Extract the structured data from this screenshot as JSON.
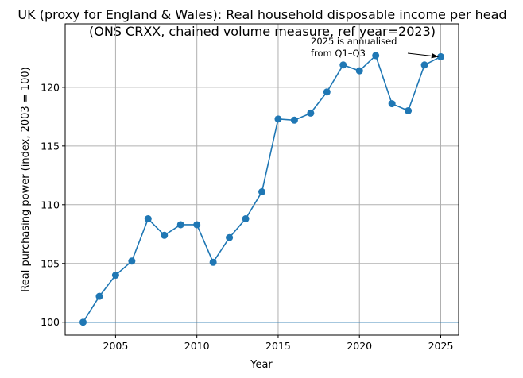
{
  "chart_data": {
    "type": "line",
    "title": "UK (proxy for England & Wales): Real household disposable income per head",
    "subtitle": "(ONS CRXX, chained volume measure, ref year=2023)",
    "xlabel": "Year",
    "ylabel": "Real purchasing power (index, 2003 = 100)",
    "xlim": [
      2001.9,
      2026.1
    ],
    "ylim": [
      98.9,
      125.4
    ],
    "xticks": [
      2005,
      2010,
      2015,
      2020,
      2025
    ],
    "xtick_labels": [
      "2005",
      "2010",
      "2015",
      "2020",
      "2025"
    ],
    "yticks": [
      100,
      105,
      110,
      115,
      120
    ],
    "ytick_labels": [
      "100",
      "105",
      "110",
      "115",
      "120"
    ],
    "grid": true,
    "reference_line": 100,
    "series": [
      {
        "name": "Real household disposable income per head index",
        "color": "#1f77b4",
        "x": [
          2003,
          2004,
          2005,
          2006,
          2007,
          2008,
          2009,
          2010,
          2011,
          2012,
          2013,
          2014,
          2015,
          2016,
          2017,
          2018,
          2019,
          2020,
          2021,
          2022,
          2023,
          2024,
          2025
        ],
        "values": [
          100.0,
          102.2,
          104.0,
          105.2,
          108.8,
          107.4,
          108.3,
          108.3,
          105.1,
          107.2,
          108.8,
          111.1,
          117.3,
          117.2,
          117.8,
          119.6,
          121.9,
          121.4,
          122.7,
          118.6,
          118.0,
          121.9,
          122.6
        ]
      }
    ],
    "annotation": {
      "lines": [
        "2025 is annualised",
        "from Q1–Q3"
      ],
      "points_to_x": 2025,
      "points_to_y": 122.6
    }
  }
}
